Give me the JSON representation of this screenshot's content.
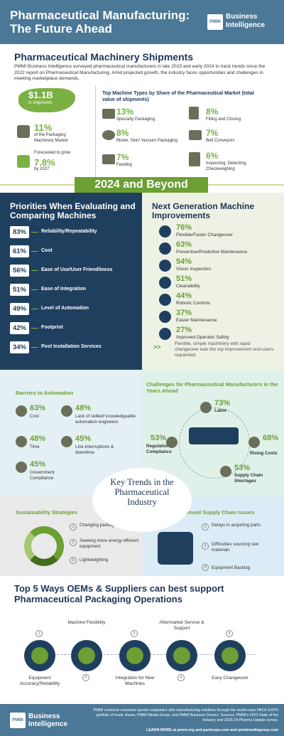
{
  "header": {
    "title": "Pharmaceutical Manufacturing: The Future Ahead",
    "logo_mark": "PMMI",
    "logo_text": "Business Intelligence"
  },
  "shipments": {
    "title": "Pharmaceutical Machinery Shipments",
    "intro": "PMMI Business Intelligence surveyed pharmaceutical manufacturers in late 2023 and early 2024 to track trends since the 2022 report on Pharmaceutical Manufacturing. Amid projected growth, the industry faces opportunities and challenges in meeting marketplace demands.",
    "value": "$1.1B",
    "value_sub": "in shipments",
    "share_pct": "11%",
    "share_label": "of the Packaging Machinery Market",
    "forecast_label": "Forecasted to grow",
    "forecast_pct": "7.8%",
    "forecast_by": "by 2027",
    "top_title": "Top Machine Types by Share of the Pharmaceutical Market (total value of shipments)",
    "machine_types": [
      {
        "pct": "13%",
        "label": "Specialty Packaging",
        "icon": "conveyor-icon"
      },
      {
        "pct": "8%",
        "label": "Filling and Closing",
        "icon": "filler-icon"
      },
      {
        "pct": "8%",
        "label": "Blister, Skin/ Vacuum Packaging",
        "icon": "gear-cluster-icon"
      },
      {
        "pct": "7%",
        "label": "Belt Conveyors",
        "icon": "conveyor-icon"
      },
      {
        "pct": "7%",
        "label": "Feeding",
        "icon": "hopper-icon"
      },
      {
        "pct": "6%",
        "label": "Inspecting, Detecting, Checkweighing",
        "icon": "scale-icon"
      }
    ]
  },
  "banner": "2024 and Beyond",
  "priorities": {
    "title": "Priorities When Evaluating and Comparing Machines",
    "items": [
      {
        "pct": "83%",
        "label": "Reliability/Repeatability"
      },
      {
        "pct": "61%",
        "label": "Cost"
      },
      {
        "pct": "56%",
        "label": "Ease of Use/User Friendliness"
      },
      {
        "pct": "51%",
        "label": "Ease of Integration"
      },
      {
        "pct": "49%",
        "label": "Level of Automation"
      },
      {
        "pct": "42%",
        "label": "Footprint"
      },
      {
        "pct": "34%",
        "label": "Post Installation Services"
      }
    ]
  },
  "next_gen": {
    "title": "Next Generation Machine Improvements",
    "items": [
      {
        "pct": "76%",
        "label": "Flexible/Faster Changeover",
        "icon": "swap-icon"
      },
      {
        "pct": "63%",
        "label": "Preventive/Predictive Maintenance",
        "icon": "wrench-icon"
      },
      {
        "pct": "54%",
        "label": "Vision Inspection",
        "icon": "eye-icon"
      },
      {
        "pct": "51%",
        "label": "Cleanability",
        "icon": "spray-icon"
      },
      {
        "pct": "44%",
        "label": "Robotic Controls",
        "icon": "robot-arm-icon"
      },
      {
        "pct": "37%",
        "label": "Easier Maintenance",
        "icon": "tools-icon"
      },
      {
        "pct": "27%",
        "label": "Improved Operator Safety",
        "icon": "shield-icon"
      }
    ],
    "note": "Flexible, simple machinery with rapid changeover was the top improvement end-users requested."
  },
  "barriers": {
    "title": "Barriers to Automation",
    "items": [
      {
        "pct": "63%",
        "label": "Cost"
      },
      {
        "pct": "48%",
        "label": "Lack of skilled/ knowledgeable automation engineers"
      },
      {
        "pct": "48%",
        "label": "Time"
      },
      {
        "pct": "45%",
        "label": "Line interruptions & downtime"
      },
      {
        "pct": "45%",
        "label": "Government Compliance"
      }
    ]
  },
  "challenges": {
    "title": "Challenges for Pharmaceutical Manufacturers in the Years Ahead",
    "items": [
      {
        "pct": "73%",
        "label": "Labor"
      },
      {
        "pct": "53%",
        "label": "Regulation Compliance"
      },
      {
        "pct": "68%",
        "label": "Rising Costs"
      },
      {
        "pct": "53%",
        "label": "Supply Chain Shortages"
      }
    ]
  },
  "key_trends": "Key Trends in the Pharmaceutical Industry",
  "sustainability": {
    "title": "Sustainability Strategies",
    "items": [
      {
        "num": "1",
        "label": "Changing packaging formats"
      },
      {
        "num": "2",
        "label": "Seeking more energy efficient equipment"
      },
      {
        "num": "3",
        "label": "Lightweighting"
      }
    ]
  },
  "supply_chain": {
    "title": "Continued Supply Chain Issues",
    "items": [
      {
        "num": "1",
        "label": "Delays in acquiring parts"
      },
      {
        "num": "2",
        "label": "Difficulties sourcing raw materials"
      },
      {
        "num": "3",
        "label": "Equipment Backlog"
      }
    ]
  },
  "top5": {
    "title": "Top 5 Ways OEMs & Suppliers can best support Pharmaceutical Packaging Operations",
    "items": [
      {
        "num": "1",
        "label": "Equipment Accuracy/Reliability"
      },
      {
        "num": "2",
        "label": "Machine Flexibility"
      },
      {
        "num": "3",
        "label": "Integration for New Machines"
      },
      {
        "num": "4",
        "label": "Aftermarket Service & Support"
      },
      {
        "num": "5",
        "label": "Easy Changeover"
      }
    ]
  },
  "footer": {
    "logo_mark": "PMMI",
    "logo_text": "Business Intelligence",
    "text": "PMMI connects consumer goods companies with manufacturing solutions through the world-class PACK EXPO portfolio of trade shows, PMMI Media Group, and PMMI Business Drivers. Sources: PMMI's 2023 State of the Industry and 2023-24 Pharma Update survey.",
    "learn_more": "LEARN MORE at pmmi.org and packexpo.com and pmmimediagroup.com"
  },
  "colors": {
    "navy": "#1f3f5f",
    "green": "#6c9f34",
    "steel": "#4a7896"
  }
}
